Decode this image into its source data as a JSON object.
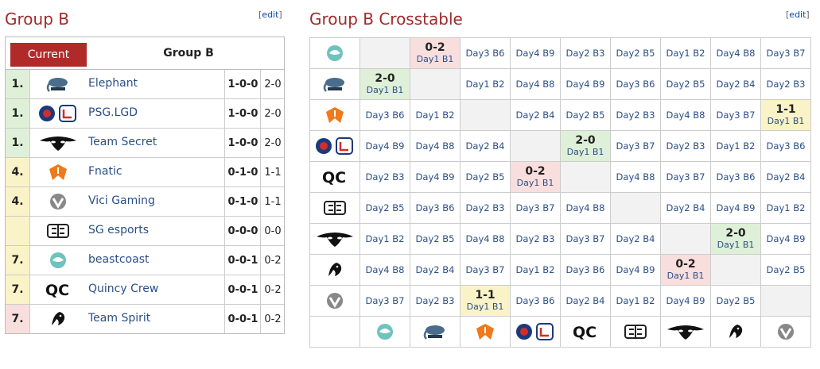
{
  "standings": {
    "title": "Group B",
    "edit_label": "edit",
    "current_label": "Current",
    "group_label": "Group B",
    "rows": [
      {
        "place": "1.",
        "team": "Elephant",
        "record": "1-0-0",
        "score": "2-0",
        "color": "#dff0d8",
        "logo": "elephant-logo"
      },
      {
        "place": "1.",
        "team": "PSG.LGD",
        "record": "1-0-0",
        "score": "2-0",
        "color": "#dff0d8",
        "logo": "psg-lgd-logo"
      },
      {
        "place": "1.",
        "team": "Team Secret",
        "record": "1-0-0",
        "score": "2-0",
        "color": "#dff0d8",
        "logo": "team-secret-logo"
      },
      {
        "place": "4.",
        "team": "Fnatic",
        "record": "0-1-0",
        "score": "1-1",
        "color": "#faf3c8",
        "logo": "fnatic-logo"
      },
      {
        "place": "4.",
        "team": "Vici Gaming",
        "record": "0-1-0",
        "score": "1-1",
        "color": "#faf3c8",
        "logo": "vici-gaming-logo"
      },
      {
        "place": "",
        "team": "SG esports",
        "record": "0-0-0",
        "score": "0-0",
        "color": "#faf3c8",
        "logo": "sg-esports-logo"
      },
      {
        "place": "7.",
        "team": "beastcoast",
        "record": "0-0-1",
        "score": "0-2",
        "color": "#faf3c8",
        "logo": "beastcoast-logo"
      },
      {
        "place": "7.",
        "team": "Quincy Crew",
        "record": "0-0-1",
        "score": "0-2",
        "color": "#faf3c8",
        "logo": "quincy-crew-logo"
      },
      {
        "place": "7.",
        "team": "Team Spirit",
        "record": "0-0-1",
        "score": "0-2",
        "color": "#f9dede",
        "logo": "team-spirit-logo"
      }
    ]
  },
  "crosstable": {
    "title": "Group B Crosstable",
    "edit_label": "edit",
    "order": [
      "beastcoast-logo",
      "elephant-logo",
      "fnatic-logo",
      "psg-lgd-logo",
      "quincy-crew-logo",
      "sg-esports-logo",
      "team-secret-logo",
      "team-spirit-logo",
      "vici-gaming-logo"
    ],
    "rows": [
      [
        "self",
        {
          "r": "0-2",
          "d": "Day1 B1",
          "t": "loss"
        },
        "Day3 B6",
        "Day4 B9",
        "Day2 B3",
        "Day2 B5",
        "Day1 B2",
        "Day4 B8",
        "Day3 B7"
      ],
      [
        {
          "r": "2-0",
          "d": "Day1 B1",
          "t": "win"
        },
        "self",
        "Day1 B2",
        "Day4 B8",
        "Day4 B9",
        "Day3 B6",
        "Day2 B5",
        "Day2 B4",
        "Day2 B3"
      ],
      [
        "Day3 B6",
        "Day1 B2",
        "self",
        "Day2 B4",
        "Day2 B5",
        "Day2 B3",
        "Day4 B8",
        "Day3 B7",
        {
          "r": "1-1",
          "d": "Day1 B1",
          "t": "draw"
        }
      ],
      [
        "Day4 B9",
        "Day4 B8",
        "Day2 B4",
        "self",
        {
          "r": "2-0",
          "d": "Day1 B1",
          "t": "win"
        },
        "Day3 B7",
        "Day2 B3",
        "Day1 B2",
        "Day3 B6"
      ],
      [
        "Day2 B3",
        "Day4 B9",
        "Day2 B5",
        {
          "r": "0-2",
          "d": "Day1 B1",
          "t": "loss"
        },
        "self",
        "Day4 B8",
        "Day3 B7",
        "Day3 B6",
        "Day2 B4"
      ],
      [
        "Day2 B5",
        "Day3 B6",
        "Day2 B3",
        "Day3 B7",
        "Day4 B8",
        "self",
        "Day2 B4",
        "Day4 B9",
        "Day1 B2"
      ],
      [
        "Day1 B2",
        "Day2 B5",
        "Day4 B8",
        "Day2 B3",
        "Day3 B7",
        "Day2 B4",
        "self",
        {
          "r": "2-0",
          "d": "Day1 B1",
          "t": "win"
        },
        "Day4 B9"
      ],
      [
        "Day4 B8",
        "Day2 B4",
        "Day3 B7",
        "Day1 B2",
        "Day3 B6",
        "Day4 B9",
        {
          "r": "0-2",
          "d": "Day1 B1",
          "t": "loss"
        },
        "self",
        "Day2 B5"
      ],
      [
        "Day3 B7",
        "Day2 B3",
        {
          "r": "1-1",
          "d": "Day1 B1",
          "t": "draw"
        },
        "Day3 B6",
        "Day2 B4",
        "Day1 B2",
        "Day4 B9",
        "Day2 B5",
        "self"
      ]
    ]
  }
}
